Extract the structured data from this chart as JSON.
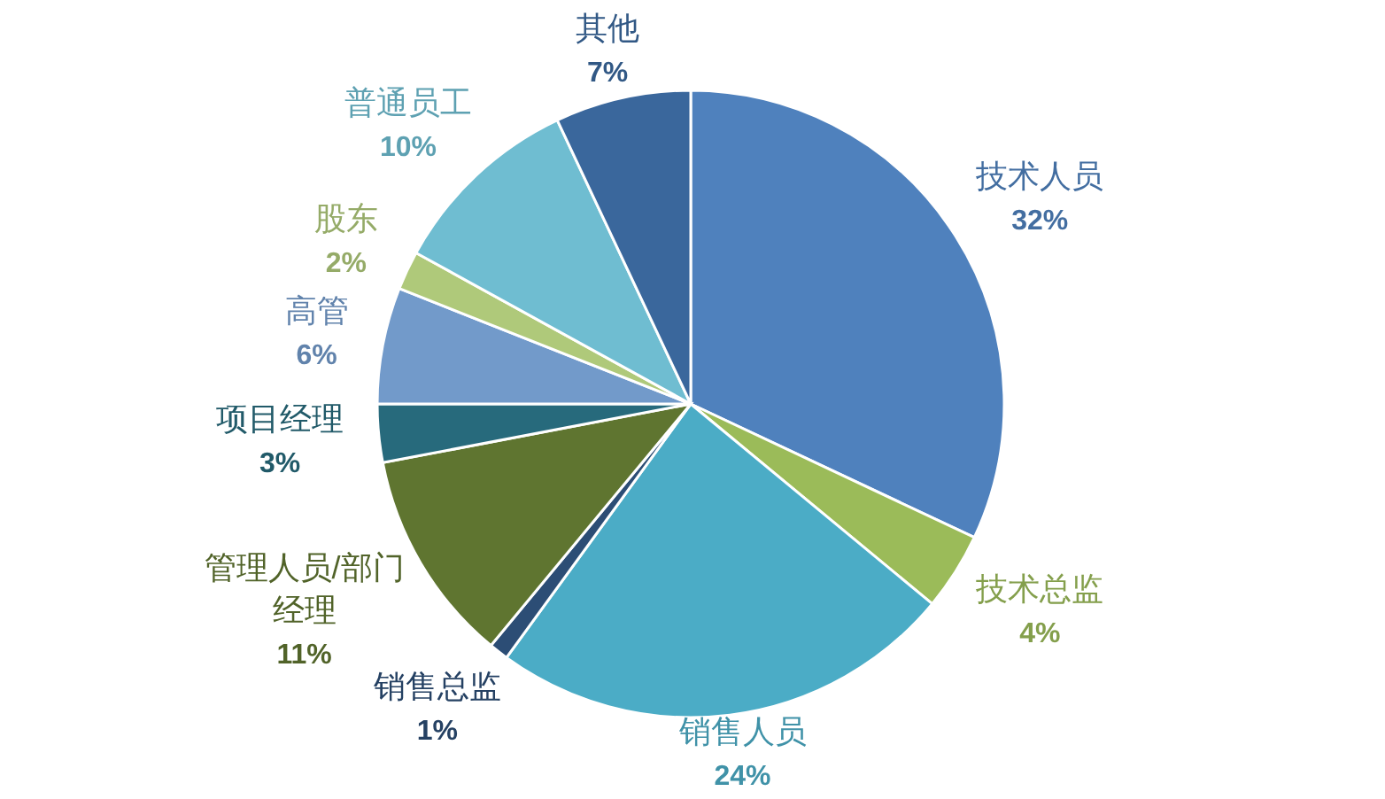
{
  "chart_data": {
    "type": "pie",
    "categories": [
      "技术人员",
      "技术总监",
      "销售人员",
      "销售总监",
      "管理人员/部门经理",
      "项目经理",
      "高管",
      "股东",
      "普通员工",
      "其他"
    ],
    "values": [
      32,
      4,
      24,
      1,
      11,
      3,
      6,
      2,
      10,
      7
    ],
    "value_labels": [
      "32%",
      "4%",
      "24%",
      "1%",
      "11%",
      "3%",
      "6%",
      "2%",
      "10%",
      "7%"
    ],
    "colors": [
      "#4f81bd",
      "#9bbb59",
      "#4bacc6",
      "#2c4d75",
      "#5f7530",
      "#276a7c",
      "#729aca",
      "#afc97a",
      "#6fbdd1",
      "#3a679c"
    ]
  }
}
